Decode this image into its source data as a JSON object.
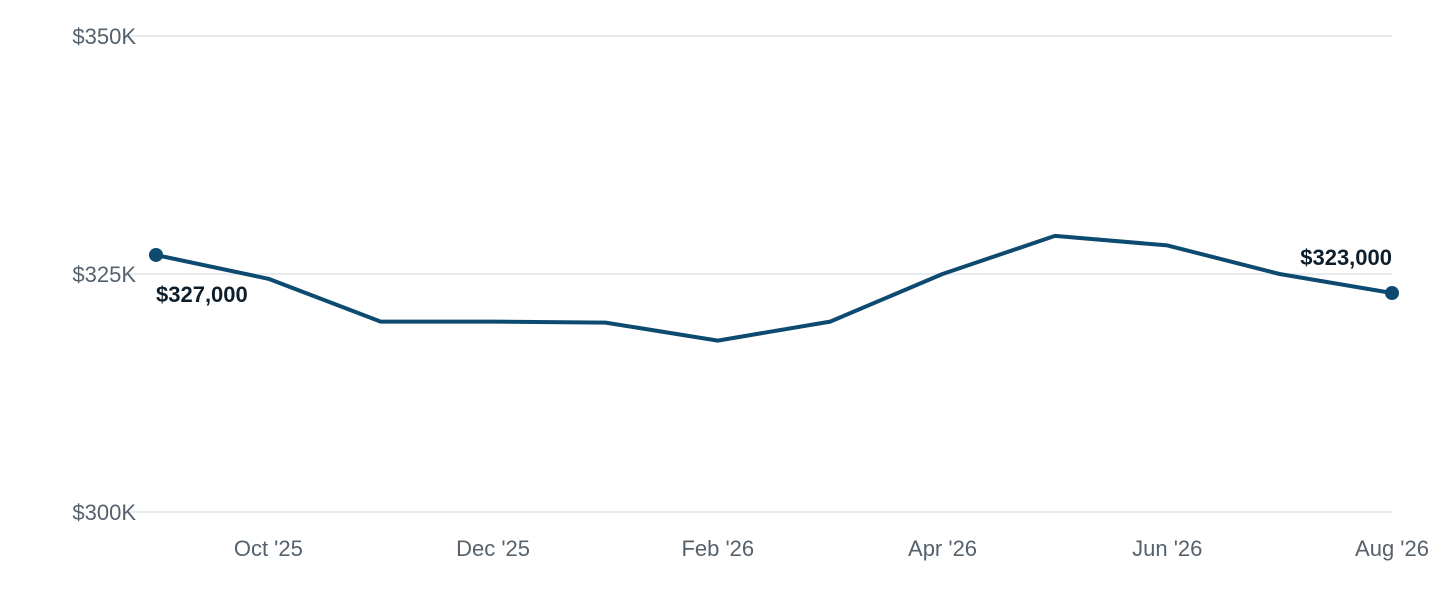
{
  "chart_data": {
    "type": "line",
    "title": "",
    "xlabel": "",
    "ylabel": "",
    "ylim": [
      300000,
      350000
    ],
    "y_ticks": [
      {
        "value": 350000,
        "label": "$350K"
      },
      {
        "value": 325000,
        "label": "$325K"
      },
      {
        "value": 300000,
        "label": "$300K"
      }
    ],
    "x_ticks": [
      {
        "x": "2025-10",
        "label": "Oct '25"
      },
      {
        "x": "2025-12",
        "label": "Dec '25"
      },
      {
        "x": "2026-02",
        "label": "Feb '26"
      },
      {
        "x": "2026-04",
        "label": "Apr '26"
      },
      {
        "x": "2026-06",
        "label": "Jun '26"
      },
      {
        "x": "2026-08",
        "label": "Aug '26"
      }
    ],
    "x": [
      "2025-09",
      "2025-10",
      "2025-11",
      "2025-12",
      "2026-01",
      "2026-02",
      "2026-03",
      "2026-04",
      "2026-05",
      "2026-06",
      "2026-07",
      "2026-08"
    ],
    "series": [
      {
        "values": [
          327000,
          324500,
          320000,
          320000,
          319900,
          318000,
          320000,
          325000,
          329000,
          328000,
          325000,
          323000
        ]
      }
    ],
    "data_labels": [
      {
        "x": "2025-09",
        "label": "$327,000"
      },
      {
        "x": "2026-08",
        "label": "$323,000"
      }
    ],
    "grid": true,
    "legend": "none",
    "colors": {
      "line": "#0c4a70",
      "label": "#0d1f2d",
      "grid": "#dfe3e8",
      "tick": "#55616d"
    }
  }
}
